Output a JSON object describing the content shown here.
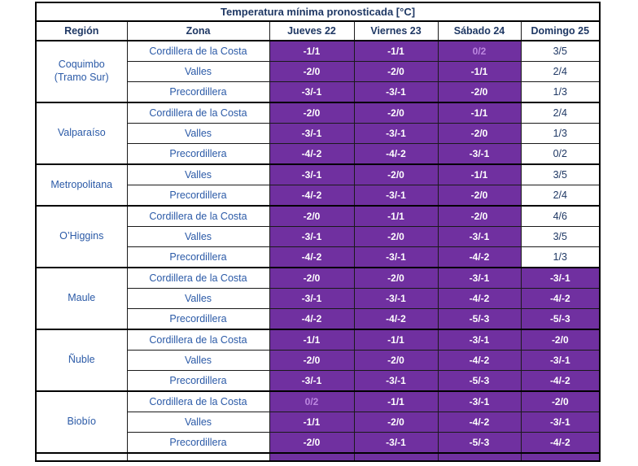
{
  "title": "Temperatura mínima pronosticada [°C]",
  "columns": [
    "Región",
    "Zona",
    "Jueves 22",
    "Viernes 23",
    "Sábado 24",
    "Domingo 25"
  ],
  "colors": {
    "highlight_purple": "#7030A0",
    "value_white": "#FFFFFF",
    "value_lavender": "#BC87E0",
    "heading_navy": "#1F3864",
    "label_blue": "#2B5AA7",
    "border_black": "#000000"
  },
  "legend_styles": {
    "p": "purple background, white text",
    "pl": "purple background, lavender text",
    "w": "white background, navy text"
  },
  "groups": [
    {
      "region": "Coquimbo (Tramo Sur)",
      "rows": [
        {
          "zone": "Cordillera de la Costa",
          "values": [
            "-1/1",
            "-1/1",
            "0/2",
            "3/5"
          ],
          "styles": [
            "p",
            "p",
            "pl",
            "w"
          ]
        },
        {
          "zone": "Valles",
          "values": [
            "-2/0",
            "-2/0",
            "-1/1",
            "2/4"
          ],
          "styles": [
            "p",
            "p",
            "p",
            "w"
          ]
        },
        {
          "zone": "Precordillera",
          "values": [
            "-3/-1",
            "-3/-1",
            "-2/0",
            "1/3"
          ],
          "styles": [
            "p",
            "p",
            "p",
            "w"
          ]
        }
      ]
    },
    {
      "region": "Valparaíso",
      "rows": [
        {
          "zone": "Cordillera de la Costa",
          "values": [
            "-2/0",
            "-2/0",
            "-1/1",
            "2/4"
          ],
          "styles": [
            "p",
            "p",
            "p",
            "w"
          ]
        },
        {
          "zone": "Valles",
          "values": [
            "-3/-1",
            "-3/-1",
            "-2/0",
            "1/3"
          ],
          "styles": [
            "p",
            "p",
            "p",
            "w"
          ]
        },
        {
          "zone": "Precordillera",
          "values": [
            "-4/-2",
            "-4/-2",
            "-3/-1",
            "0/2"
          ],
          "styles": [
            "p",
            "p",
            "p",
            "w"
          ]
        }
      ]
    },
    {
      "region": "Metropolitana",
      "rows": [
        {
          "zone": "Valles",
          "values": [
            "-3/-1",
            "-2/0",
            "-1/1",
            "3/5"
          ],
          "styles": [
            "p",
            "p",
            "p",
            "w"
          ]
        },
        {
          "zone": "Precordillera",
          "values": [
            "-4/-2",
            "-3/-1",
            "-2/0",
            "2/4"
          ],
          "styles": [
            "p",
            "p",
            "p",
            "w"
          ]
        }
      ]
    },
    {
      "region": "O’Higgins",
      "rows": [
        {
          "zone": "Cordillera de la Costa",
          "values": [
            "-2/0",
            "-1/1",
            "-2/0",
            "4/6"
          ],
          "styles": [
            "p",
            "p",
            "p",
            "w"
          ]
        },
        {
          "zone": "Valles",
          "values": [
            "-3/-1",
            "-2/0",
            "-3/-1",
            "3/5"
          ],
          "styles": [
            "p",
            "p",
            "p",
            "w"
          ]
        },
        {
          "zone": "Precordillera",
          "values": [
            "-4/-2",
            "-3/-1",
            "-4/-2",
            "1/3"
          ],
          "styles": [
            "p",
            "p",
            "p",
            "w"
          ]
        }
      ]
    },
    {
      "region": "Maule",
      "rows": [
        {
          "zone": "Cordillera de la Costa",
          "values": [
            "-2/0",
            "-2/0",
            "-3/-1",
            "-3/-1"
          ],
          "styles": [
            "p",
            "p",
            "p",
            "p"
          ]
        },
        {
          "zone": "Valles",
          "values": [
            "-3/-1",
            "-3/-1",
            "-4/-2",
            "-4/-2"
          ],
          "styles": [
            "p",
            "p",
            "p",
            "p"
          ]
        },
        {
          "zone": "Precordillera",
          "values": [
            "-4/-2",
            "-4/-2",
            "-5/-3",
            "-5/-3"
          ],
          "styles": [
            "p",
            "p",
            "p",
            "p"
          ]
        }
      ]
    },
    {
      "region": "Ñuble",
      "rows": [
        {
          "zone": "Cordillera de la Costa",
          "values": [
            "-1/1",
            "-1/1",
            "-3/-1",
            "-2/0"
          ],
          "styles": [
            "p",
            "p",
            "p",
            "p"
          ]
        },
        {
          "zone": "Valles",
          "values": [
            "-2/0",
            "-2/0",
            "-4/-2",
            "-3/-1"
          ],
          "styles": [
            "p",
            "p",
            "p",
            "p"
          ]
        },
        {
          "zone": "Precordillera",
          "values": [
            "-3/-1",
            "-3/-1",
            "-5/-3",
            "-4/-2"
          ],
          "styles": [
            "p",
            "p",
            "p",
            "p"
          ]
        }
      ]
    },
    {
      "region": "Biobío",
      "rows": [
        {
          "zone": "Cordillera de la Costa",
          "values": [
            "0/2",
            "-1/1",
            "-3/-1",
            "-2/0"
          ],
          "styles": [
            "pl",
            "p",
            "p",
            "p"
          ]
        },
        {
          "zone": "Valles",
          "values": [
            "-1/1",
            "-2/0",
            "-4/-2",
            "-3/-1"
          ],
          "styles": [
            "p",
            "p",
            "p",
            "p"
          ]
        },
        {
          "zone": "Precordillera",
          "values": [
            "-2/0",
            "-3/-1",
            "-5/-3",
            "-4/-2"
          ],
          "styles": [
            "p",
            "p",
            "p",
            "p"
          ]
        }
      ]
    }
  ]
}
